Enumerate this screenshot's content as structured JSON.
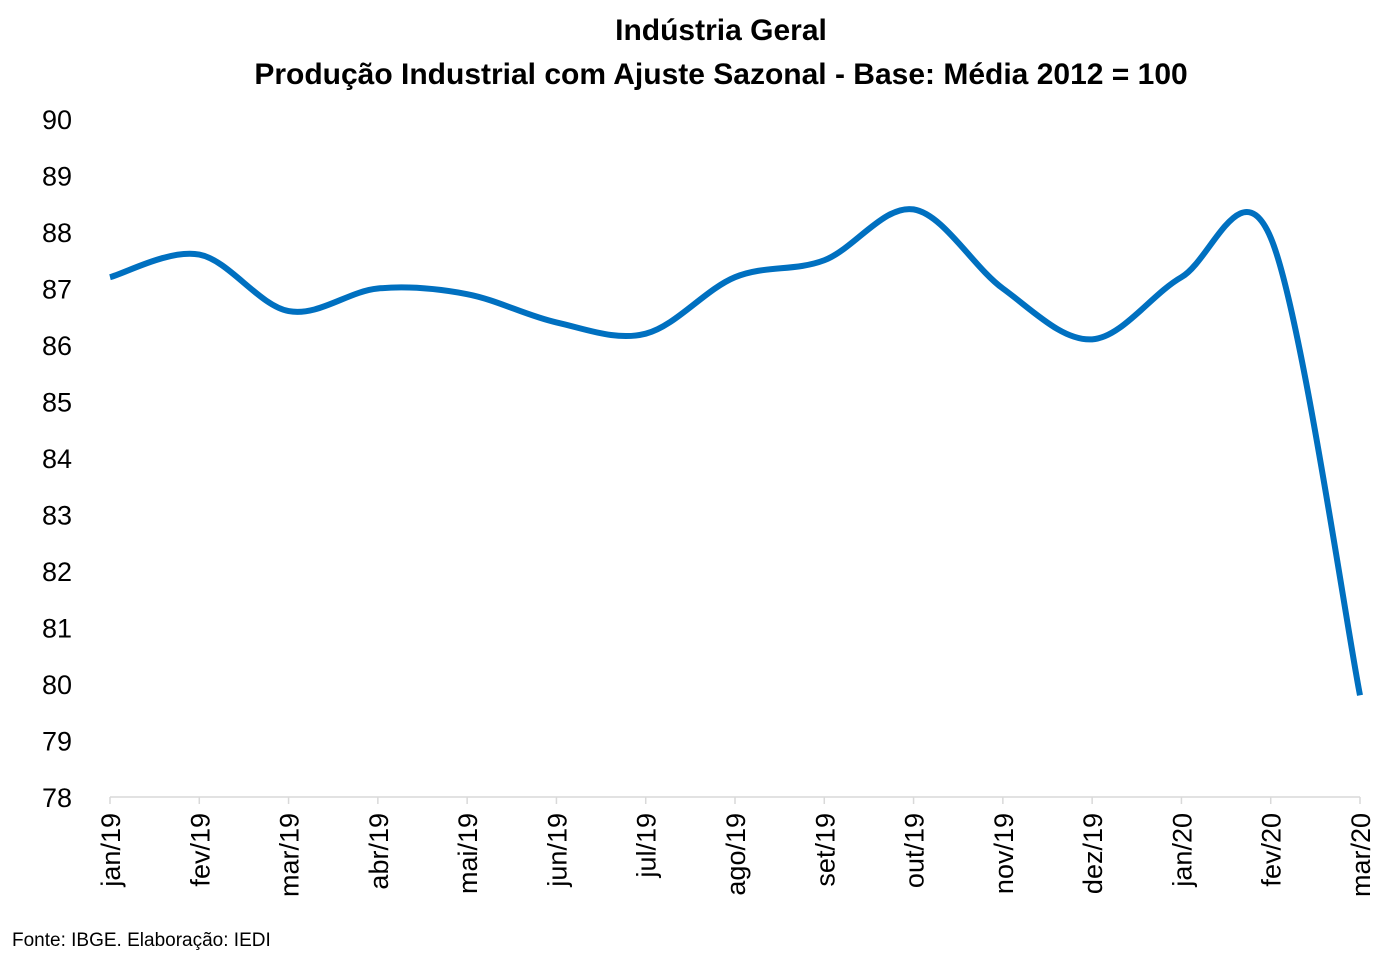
{
  "chart_data": {
    "type": "line",
    "title": "Indústria Geral",
    "subtitle": "Produção Industrial com Ajuste Sazonal - Base: Média 2012 = 100",
    "xlabel": "",
    "ylabel": "",
    "categories": [
      "jan/19",
      "fev/19",
      "mar/19",
      "abr/19",
      "mai/19",
      "jun/19",
      "jul/19",
      "ago/19",
      "set/19",
      "out/19",
      "nov/19",
      "dez/19",
      "jan/20",
      "fev/20",
      "mar/20"
    ],
    "series": [
      {
        "values": [
          87.2,
          87.6,
          86.6,
          87.0,
          86.9,
          86.4,
          86.2,
          87.2,
          87.5,
          88.4,
          87.0,
          86.1,
          87.2,
          87.9,
          79.8
        ]
      }
    ],
    "ylim": [
      78,
      90
    ],
    "yticks": [
      "78",
      "79",
      "80",
      "81",
      "82",
      "83",
      "84",
      "85",
      "86",
      "87",
      "88",
      "89",
      "90"
    ],
    "line_color": "#0070C0",
    "grid": false,
    "legend": "none"
  },
  "source_note": "Fonte: IBGE. Elaboração: IEDI"
}
